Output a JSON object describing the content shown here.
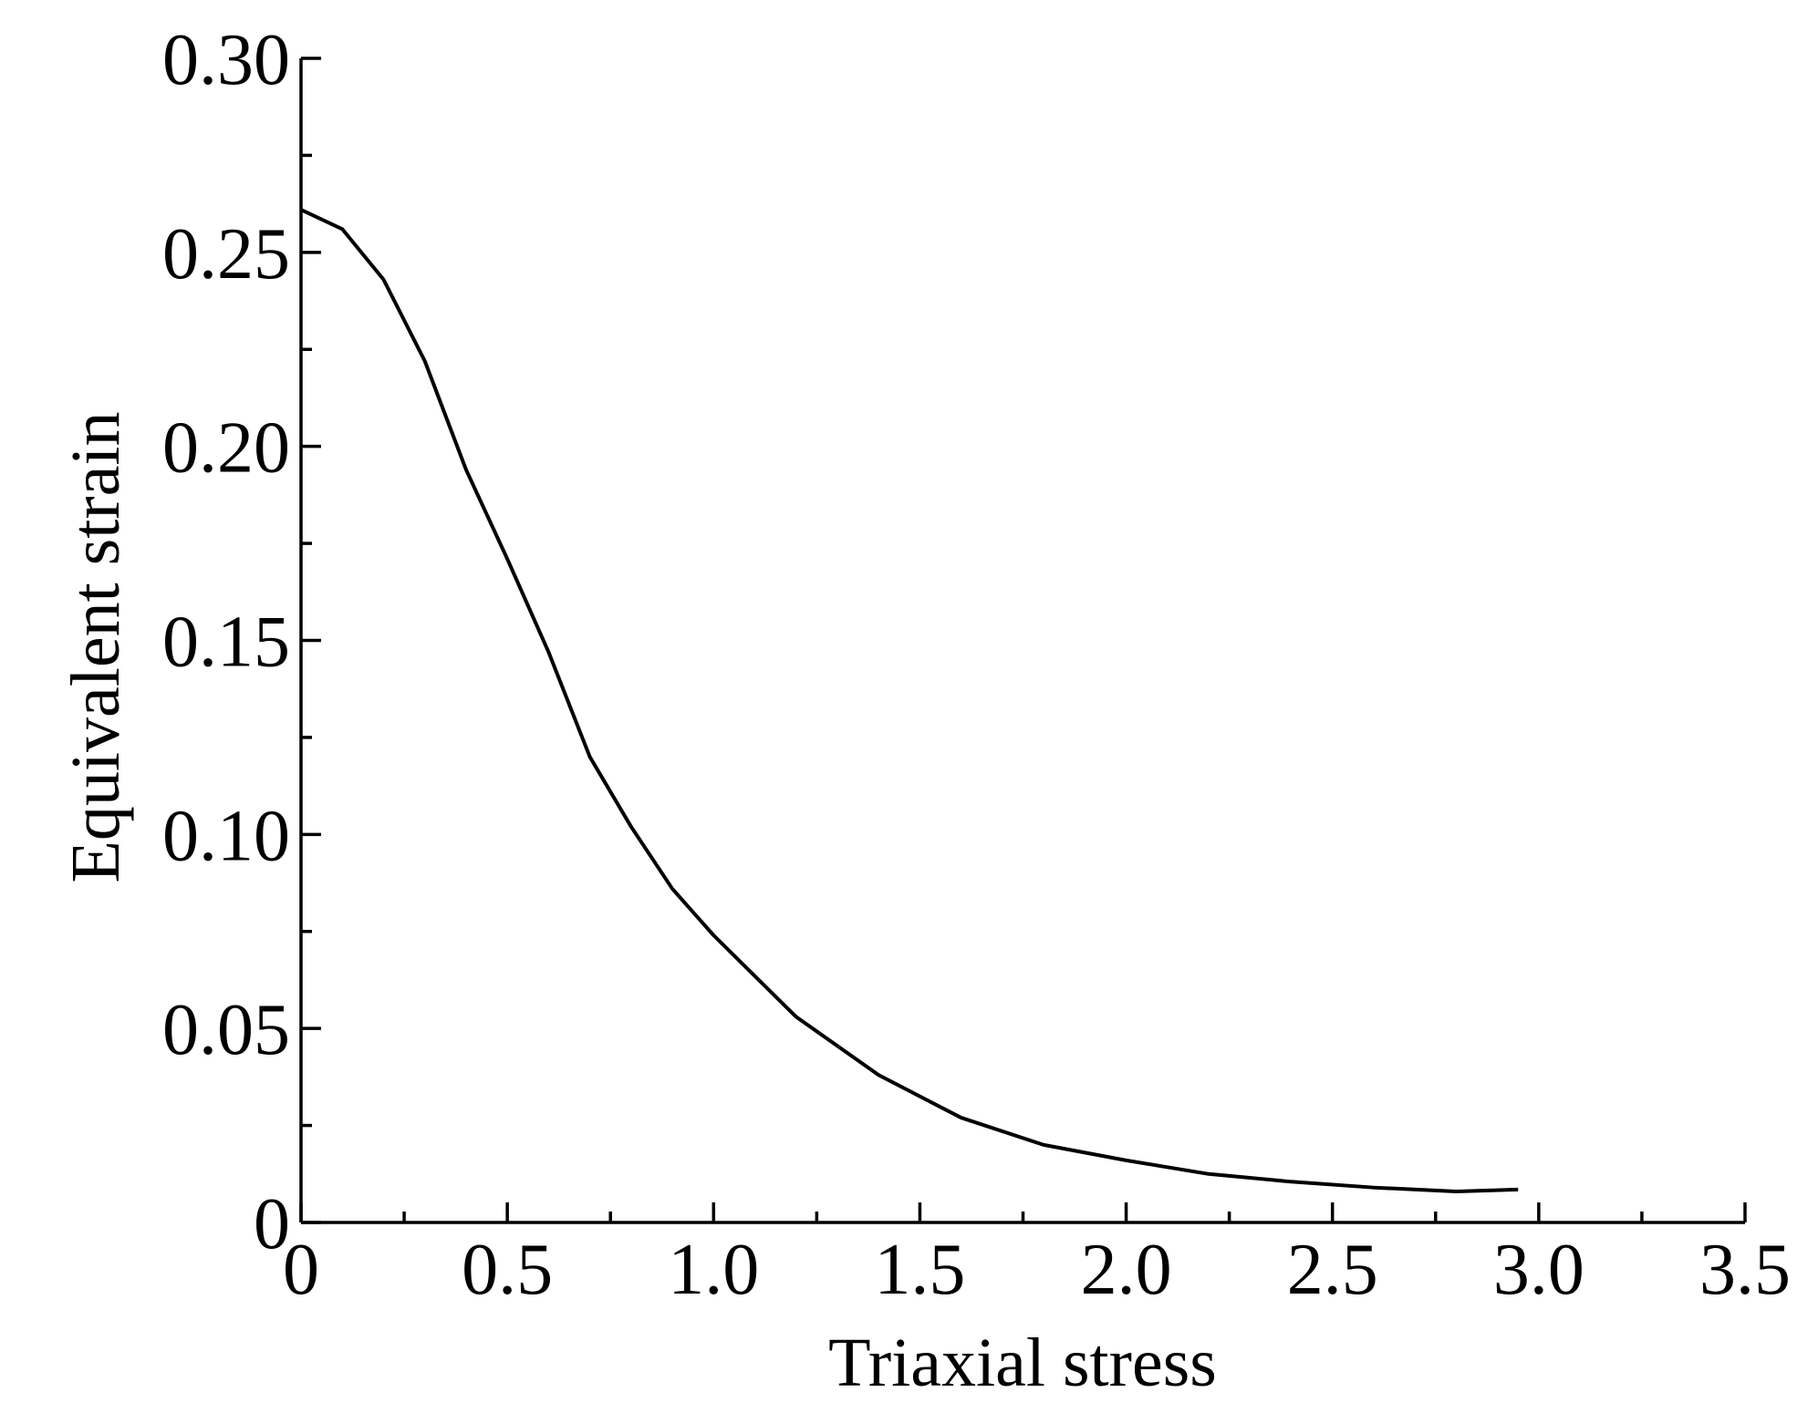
{
  "chart_data": {
    "type": "line",
    "xlabel": "Triaxial stress",
    "ylabel": "Equivalent strain",
    "x": [
      0,
      0.1,
      0.2,
      0.3,
      0.4,
      0.5,
      0.6,
      0.7,
      0.8,
      0.9,
      1.0,
      1.2,
      1.4,
      1.6,
      1.8,
      2.0,
      2.2,
      2.4,
      2.6,
      2.8,
      2.95
    ],
    "series": [
      {
        "name": "Equivalent strain",
        "color": "#000000",
        "values": [
          0.261,
          0.256,
          0.243,
          0.222,
          0.194,
          0.171,
          0.147,
          0.12,
          0.102,
          0.086,
          0.074,
          0.053,
          0.038,
          0.027,
          0.02,
          0.016,
          0.0125,
          0.0105,
          0.009,
          0.008,
          0.0085
        ]
      }
    ],
    "xlim": [
      0,
      3.5
    ],
    "xticks": [
      0,
      0.5,
      {
        "value": 1,
        "label": "1.0"
      },
      1.5,
      {
        "value": 2,
        "label": "2.0"
      },
      2.5,
      {
        "value": 3,
        "label": "3.0"
      },
      3.5
    ],
    "xminorticks": [
      0.25,
      0.75,
      1.25,
      1.75,
      2.25,
      2.75,
      3.25
    ],
    "ylim": [
      0,
      0.3
    ],
    "yticks": [
      0,
      {
        "value": 0.05,
        "label": "0.05"
      },
      {
        "value": 0.1,
        "label": "0.10"
      },
      {
        "value": 0.15,
        "label": "0.15"
      },
      {
        "value": 0.2,
        "label": "0.20"
      },
      {
        "value": 0.25,
        "label": "0.25"
      },
      {
        "value": 0.3,
        "label": "0.30"
      }
    ],
    "yminorticks": [
      0.025,
      0.075,
      0.125,
      0.175,
      0.225,
      0.275
    ],
    "grid": false
  }
}
